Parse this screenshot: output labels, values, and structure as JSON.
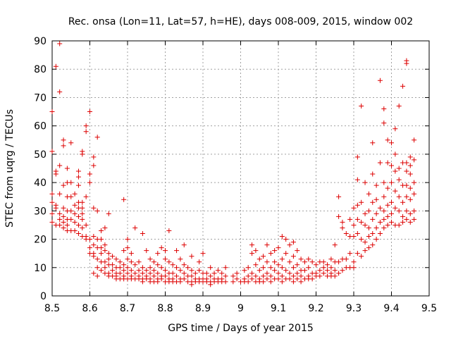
{
  "chart_data": {
    "type": "scatter",
    "title": "Rec. onsa (Lon=11, Lat=57, h=HE), days 008-009, 2015, window 002",
    "xlabel": "GPS time / Days of year 2015",
    "ylabel": "STEC from uqrg / TECUs",
    "xlim": [
      8.5,
      9.5
    ],
    "ylim": [
      0,
      90
    ],
    "grid": true,
    "marker": "plus",
    "color": "#dd0000",
    "x_ticks": [
      8.5,
      8.6,
      8.7,
      8.8,
      8.9,
      9.0,
      9.1,
      9.2,
      9.3,
      9.4,
      9.5
    ],
    "x_tick_labels": [
      "8.5",
      "8.6",
      "8.7",
      "8.8",
      "8.9",
      "9",
      "9.1",
      "9.2",
      "9.3",
      "9.4",
      "9.5"
    ],
    "y_ticks": [
      0,
      10,
      20,
      30,
      40,
      50,
      60,
      70,
      80,
      90
    ],
    "y_tick_labels": [
      "0",
      "10",
      "20",
      "30",
      "40",
      "50",
      "60",
      "70",
      "80",
      "90"
    ],
    "points": [
      [
        8.5,
        65
      ],
      [
        8.5,
        51
      ],
      [
        8.5,
        36
      ],
      [
        8.5,
        33
      ],
      [
        8.5,
        29
      ],
      [
        8.5,
        26
      ],
      [
        8.51,
        81
      ],
      [
        8.51,
        44
      ],
      [
        8.51,
        43
      ],
      [
        8.51,
        32
      ],
      [
        8.51,
        31
      ],
      [
        8.51,
        25
      ],
      [
        8.52,
        89
      ],
      [
        8.52,
        72
      ],
      [
        8.52,
        46
      ],
      [
        8.52,
        36
      ],
      [
        8.52,
        29
      ],
      [
        8.52,
        27
      ],
      [
        8.52,
        25
      ],
      [
        8.53,
        55
      ],
      [
        8.53,
        53
      ],
      [
        8.53,
        39
      ],
      [
        8.53,
        31
      ],
      [
        8.53,
        28
      ],
      [
        8.53,
        26
      ],
      [
        8.53,
        24
      ],
      [
        8.54,
        45
      ],
      [
        8.54,
        40
      ],
      [
        8.54,
        35
      ],
      [
        8.54,
        30
      ],
      [
        8.54,
        27
      ],
      [
        8.54,
        25
      ],
      [
        8.54,
        23
      ],
      [
        8.55,
        54
      ],
      [
        8.55,
        40
      ],
      [
        8.55,
        35
      ],
      [
        8.55,
        30
      ],
      [
        8.55,
        27
      ],
      [
        8.55,
        23
      ],
      [
        8.56,
        36
      ],
      [
        8.56,
        32
      ],
      [
        8.56,
        29
      ],
      [
        8.56,
        26
      ],
      [
        8.56,
        23
      ],
      [
        8.57,
        44
      ],
      [
        8.57,
        42
      ],
      [
        8.57,
        39
      ],
      [
        8.57,
        33
      ],
      [
        8.57,
        31
      ],
      [
        8.57,
        28
      ],
      [
        8.57,
        25
      ],
      [
        8.57,
        22
      ],
      [
        8.58,
        51
      ],
      [
        8.58,
        50
      ],
      [
        8.58,
        33
      ],
      [
        8.58,
        31
      ],
      [
        8.58,
        29
      ],
      [
        8.58,
        27
      ],
      [
        8.58,
        24
      ],
      [
        8.58,
        21
      ],
      [
        8.59,
        60
      ],
      [
        8.59,
        58
      ],
      [
        8.59,
        35
      ],
      [
        8.59,
        25
      ],
      [
        8.59,
        21
      ],
      [
        8.59,
        20
      ],
      [
        8.6,
        65
      ],
      [
        8.6,
        43
      ],
      [
        8.6,
        40
      ],
      [
        8.6,
        20
      ],
      [
        8.6,
        17
      ],
      [
        8.6,
        15
      ],
      [
        8.61,
        49
      ],
      [
        8.61,
        46
      ],
      [
        8.61,
        31
      ],
      [
        8.61,
        21
      ],
      [
        8.61,
        18
      ],
      [
        8.61,
        15
      ],
      [
        8.61,
        14
      ],
      [
        8.61,
        8
      ],
      [
        8.62,
        56
      ],
      [
        8.62,
        30
      ],
      [
        8.62,
        20
      ],
      [
        8.62,
        17
      ],
      [
        8.62,
        13
      ],
      [
        8.62,
        10
      ],
      [
        8.62,
        7
      ],
      [
        8.63,
        23
      ],
      [
        8.63,
        20
      ],
      [
        8.63,
        17
      ],
      [
        8.63,
        15
      ],
      [
        8.63,
        12
      ],
      [
        8.63,
        9
      ],
      [
        8.64,
        24
      ],
      [
        8.64,
        18
      ],
      [
        8.64,
        16
      ],
      [
        8.64,
        12
      ],
      [
        8.64,
        10
      ],
      [
        8.64,
        8
      ],
      [
        8.65,
        29
      ],
      [
        8.65,
        15
      ],
      [
        8.65,
        13
      ],
      [
        8.65,
        11
      ],
      [
        8.65,
        8
      ],
      [
        8.65,
        7
      ],
      [
        8.66,
        14
      ],
      [
        8.66,
        11
      ],
      [
        8.66,
        9
      ],
      [
        8.66,
        7
      ],
      [
        8.67,
        13
      ],
      [
        8.67,
        10
      ],
      [
        8.67,
        8
      ],
      [
        8.67,
        7
      ],
      [
        8.67,
        6
      ],
      [
        8.68,
        12
      ],
      [
        8.68,
        10
      ],
      [
        8.68,
        8
      ],
      [
        8.68,
        6
      ],
      [
        8.69,
        34
      ],
      [
        8.69,
        16
      ],
      [
        8.69,
        11
      ],
      [
        8.69,
        9
      ],
      [
        8.69,
        7
      ],
      [
        8.69,
        6
      ],
      [
        8.7,
        20
      ],
      [
        8.7,
        17
      ],
      [
        8.7,
        13
      ],
      [
        8.7,
        10
      ],
      [
        8.7,
        8
      ],
      [
        8.7,
        6
      ],
      [
        8.71,
        15
      ],
      [
        8.71,
        12
      ],
      [
        8.71,
        9
      ],
      [
        8.71,
        7
      ],
      [
        8.71,
        6
      ],
      [
        8.72,
        24
      ],
      [
        8.72,
        11
      ],
      [
        8.72,
        8
      ],
      [
        8.72,
        6
      ],
      [
        8.73,
        12
      ],
      [
        8.73,
        9
      ],
      [
        8.73,
        7
      ],
      [
        8.73,
        6
      ],
      [
        8.74,
        22
      ],
      [
        8.74,
        10
      ],
      [
        8.74,
        8
      ],
      [
        8.74,
        6
      ],
      [
        8.74,
        5
      ],
      [
        8.75,
        16
      ],
      [
        8.75,
        9
      ],
      [
        8.75,
        7
      ],
      [
        8.75,
        6
      ],
      [
        8.76,
        13
      ],
      [
        8.76,
        10
      ],
      [
        8.76,
        8
      ],
      [
        8.76,
        6
      ],
      [
        8.76,
        5
      ],
      [
        8.77,
        12
      ],
      [
        8.77,
        9
      ],
      [
        8.77,
        7
      ],
      [
        8.77,
        5
      ],
      [
        8.78,
        15
      ],
      [
        8.78,
        11
      ],
      [
        8.78,
        8
      ],
      [
        8.78,
        6
      ],
      [
        8.78,
        5
      ],
      [
        8.79,
        17
      ],
      [
        8.79,
        10
      ],
      [
        8.79,
        7
      ],
      [
        8.79,
        6
      ],
      [
        8.8,
        16
      ],
      [
        8.8,
        13
      ],
      [
        8.8,
        9
      ],
      [
        8.8,
        7
      ],
      [
        8.8,
        5
      ],
      [
        8.81,
        23
      ],
      [
        8.81,
        12
      ],
      [
        8.81,
        8
      ],
      [
        8.81,
        6
      ],
      [
        8.81,
        5
      ],
      [
        8.82,
        11
      ],
      [
        8.82,
        8
      ],
      [
        8.82,
        6
      ],
      [
        8.82,
        5
      ],
      [
        8.83,
        16
      ],
      [
        8.83,
        10
      ],
      [
        8.83,
        7
      ],
      [
        8.83,
        5
      ],
      [
        8.84,
        13
      ],
      [
        8.84,
        9
      ],
      [
        8.84,
        6
      ],
      [
        8.84,
        5
      ],
      [
        8.85,
        18
      ],
      [
        8.85,
        11
      ],
      [
        8.85,
        8
      ],
      [
        8.85,
        6
      ],
      [
        8.86,
        10
      ],
      [
        8.86,
        7
      ],
      [
        8.86,
        5
      ],
      [
        8.87,
        14
      ],
      [
        8.87,
        9
      ],
      [
        8.87,
        7
      ],
      [
        8.87,
        5
      ],
      [
        8.87,
        4
      ],
      [
        8.88,
        8
      ],
      [
        8.88,
        6
      ],
      [
        8.88,
        5
      ],
      [
        8.89,
        12
      ],
      [
        8.89,
        9
      ],
      [
        8.89,
        6
      ],
      [
        8.89,
        5
      ],
      [
        8.9,
        15
      ],
      [
        8.9,
        8
      ],
      [
        8.9,
        6
      ],
      [
        8.9,
        5
      ],
      [
        8.91,
        8
      ],
      [
        8.91,
        6
      ],
      [
        8.91,
        5
      ],
      [
        8.92,
        10
      ],
      [
        8.92,
        7
      ],
      [
        8.92,
        5
      ],
      [
        8.92,
        4
      ],
      [
        8.93,
        8
      ],
      [
        8.93,
        6
      ],
      [
        8.93,
        5
      ],
      [
        8.94,
        9
      ],
      [
        8.94,
        6
      ],
      [
        8.94,
        5
      ],
      [
        8.95,
        8
      ],
      [
        8.95,
        6
      ],
      [
        8.95,
        5
      ],
      [
        8.96,
        10
      ],
      [
        8.96,
        7
      ],
      [
        8.96,
        5
      ],
      [
        8.98,
        7
      ],
      [
        8.98,
        5
      ],
      [
        8.99,
        8
      ],
      [
        8.99,
        6
      ],
      [
        9.0,
        5
      ],
      [
        9.01,
        9
      ],
      [
        9.01,
        6
      ],
      [
        9.01,
        5
      ],
      [
        9.02,
        10
      ],
      [
        9.02,
        7
      ],
      [
        9.02,
        5
      ],
      [
        9.03,
        18
      ],
      [
        9.03,
        15
      ],
      [
        9.03,
        8
      ],
      [
        9.03,
        6
      ],
      [
        9.04,
        16
      ],
      [
        9.04,
        11
      ],
      [
        9.04,
        7
      ],
      [
        9.04,
        5
      ],
      [
        9.05,
        13
      ],
      [
        9.05,
        9
      ],
      [
        9.05,
        6
      ],
      [
        9.05,
        5
      ],
      [
        9.06,
        14
      ],
      [
        9.06,
        10
      ],
      [
        9.06,
        7
      ],
      [
        9.06,
        5
      ],
      [
        9.07,
        18
      ],
      [
        9.07,
        12
      ],
      [
        9.07,
        8
      ],
      [
        9.07,
        6
      ],
      [
        9.08,
        15
      ],
      [
        9.08,
        10
      ],
      [
        9.08,
        7
      ],
      [
        9.08,
        5
      ],
      [
        9.09,
        16
      ],
      [
        9.09,
        12
      ],
      [
        9.09,
        9
      ],
      [
        9.09,
        6
      ],
      [
        9.1,
        17
      ],
      [
        9.1,
        11
      ],
      [
        9.1,
        8
      ],
      [
        9.1,
        6
      ],
      [
        9.11,
        21
      ],
      [
        9.11,
        13
      ],
      [
        9.11,
        10
      ],
      [
        9.11,
        7
      ],
      [
        9.11,
        5
      ],
      [
        9.12,
        20
      ],
      [
        9.12,
        15
      ],
      [
        9.12,
        9
      ],
      [
        9.12,
        6
      ],
      [
        9.13,
        18
      ],
      [
        9.13,
        12
      ],
      [
        9.13,
        8
      ],
      [
        9.13,
        6
      ],
      [
        9.14,
        19
      ],
      [
        9.14,
        14
      ],
      [
        9.14,
        10
      ],
      [
        9.14,
        7
      ],
      [
        9.14,
        5
      ],
      [
        9.15,
        16
      ],
      [
        9.15,
        11
      ],
      [
        9.15,
        8
      ],
      [
        9.15,
        6
      ],
      [
        9.16,
        13
      ],
      [
        9.16,
        9
      ],
      [
        9.16,
        7
      ],
      [
        9.16,
        5
      ],
      [
        9.17,
        12
      ],
      [
        9.17,
        9
      ],
      [
        9.17,
        6
      ],
      [
        9.18,
        13
      ],
      [
        9.18,
        10
      ],
      [
        9.18,
        7
      ],
      [
        9.18,
        6
      ],
      [
        9.19,
        12
      ],
      [
        9.19,
        8
      ],
      [
        9.19,
        6
      ],
      [
        9.2,
        11
      ],
      [
        9.2,
        8
      ],
      [
        9.2,
        7
      ],
      [
        9.21,
        12
      ],
      [
        9.21,
        9
      ],
      [
        9.21,
        7
      ],
      [
        9.22,
        12
      ],
      [
        9.22,
        10
      ],
      [
        9.22,
        8
      ],
      [
        9.23,
        11
      ],
      [
        9.23,
        9
      ],
      [
        9.23,
        7
      ],
      [
        9.24,
        13
      ],
      [
        9.24,
        10
      ],
      [
        9.24,
        8
      ],
      [
        9.24,
        7
      ],
      [
        9.25,
        18
      ],
      [
        9.25,
        12
      ],
      [
        9.25,
        9
      ],
      [
        9.25,
        7
      ],
      [
        9.26,
        35
      ],
      [
        9.26,
        28
      ],
      [
        9.26,
        12
      ],
      [
        9.26,
        8
      ],
      [
        9.27,
        26
      ],
      [
        9.27,
        24
      ],
      [
        9.27,
        13
      ],
      [
        9.27,
        9
      ],
      [
        9.28,
        22
      ],
      [
        9.28,
        13
      ],
      [
        9.28,
        10
      ],
      [
        9.29,
        27
      ],
      [
        9.29,
        21
      ],
      [
        9.29,
        15
      ],
      [
        9.29,
        10
      ],
      [
        9.3,
        31
      ],
      [
        9.3,
        25
      ],
      [
        9.3,
        21
      ],
      [
        9.3,
        12
      ],
      [
        9.3,
        10
      ],
      [
        9.31,
        49
      ],
      [
        9.31,
        41
      ],
      [
        9.31,
        32
      ],
      [
        9.31,
        27
      ],
      [
        9.31,
        22
      ],
      [
        9.31,
        15
      ],
      [
        9.32,
        67
      ],
      [
        9.32,
        33
      ],
      [
        9.32,
        26
      ],
      [
        9.32,
        20
      ],
      [
        9.32,
        14
      ],
      [
        9.33,
        40
      ],
      [
        9.33,
        29
      ],
      [
        9.33,
        25
      ],
      [
        9.33,
        19
      ],
      [
        9.33,
        16
      ],
      [
        9.34,
        36
      ],
      [
        9.34,
        30
      ],
      [
        9.34,
        24
      ],
      [
        9.34,
        21
      ],
      [
        9.34,
        17
      ],
      [
        9.35,
        54
      ],
      [
        9.35,
        43
      ],
      [
        9.35,
        33
      ],
      [
        9.35,
        27
      ],
      [
        9.35,
        22
      ],
      [
        9.35,
        18
      ],
      [
        9.36,
        39
      ],
      [
        9.36,
        34
      ],
      [
        9.36,
        29
      ],
      [
        9.36,
        24
      ],
      [
        9.36,
        20
      ],
      [
        9.37,
        76
      ],
      [
        9.37,
        47
      ],
      [
        9.37,
        31
      ],
      [
        9.37,
        26
      ],
      [
        9.37,
        22
      ],
      [
        9.38,
        66
      ],
      [
        9.38,
        61
      ],
      [
        9.38,
        40
      ],
      [
        9.38,
        35
      ],
      [
        9.38,
        30
      ],
      [
        9.38,
        27
      ],
      [
        9.38,
        24
      ],
      [
        9.39,
        55
      ],
      [
        9.39,
        47
      ],
      [
        9.39,
        38
      ],
      [
        9.39,
        32
      ],
      [
        9.39,
        28
      ],
      [
        9.39,
        25
      ],
      [
        9.4,
        54
      ],
      [
        9.4,
        46
      ],
      [
        9.4,
        40
      ],
      [
        9.4,
        33
      ],
      [
        9.4,
        29
      ],
      [
        9.4,
        26
      ],
      [
        9.41,
        59
      ],
      [
        9.41,
        50
      ],
      [
        9.41,
        44
      ],
      [
        9.41,
        37
      ],
      [
        9.41,
        31
      ],
      [
        9.41,
        25
      ],
      [
        9.42,
        67
      ],
      [
        9.42,
        45
      ],
      [
        9.42,
        41
      ],
      [
        9.42,
        35
      ],
      [
        9.42,
        30
      ],
      [
        9.42,
        25
      ],
      [
        9.43,
        74
      ],
      [
        9.43,
        47
      ],
      [
        9.43,
        39
      ],
      [
        9.43,
        33
      ],
      [
        9.43,
        28
      ],
      [
        9.43,
        26
      ],
      [
        9.44,
        83
      ],
      [
        9.44,
        82
      ],
      [
        9.44,
        47
      ],
      [
        9.44,
        44
      ],
      [
        9.44,
        39
      ],
      [
        9.44,
        35
      ],
      [
        9.44,
        30
      ],
      [
        9.44,
        27
      ],
      [
        9.45,
        49
      ],
      [
        9.45,
        46
      ],
      [
        9.45,
        43
      ],
      [
        9.45,
        38
      ],
      [
        9.45,
        34
      ],
      [
        9.45,
        29
      ],
      [
        9.45,
        26
      ],
      [
        9.46,
        55
      ],
      [
        9.46,
        48
      ],
      [
        9.46,
        40
      ],
      [
        9.46,
        36
      ],
      [
        9.46,
        30
      ],
      [
        9.46,
        27
      ]
    ]
  }
}
